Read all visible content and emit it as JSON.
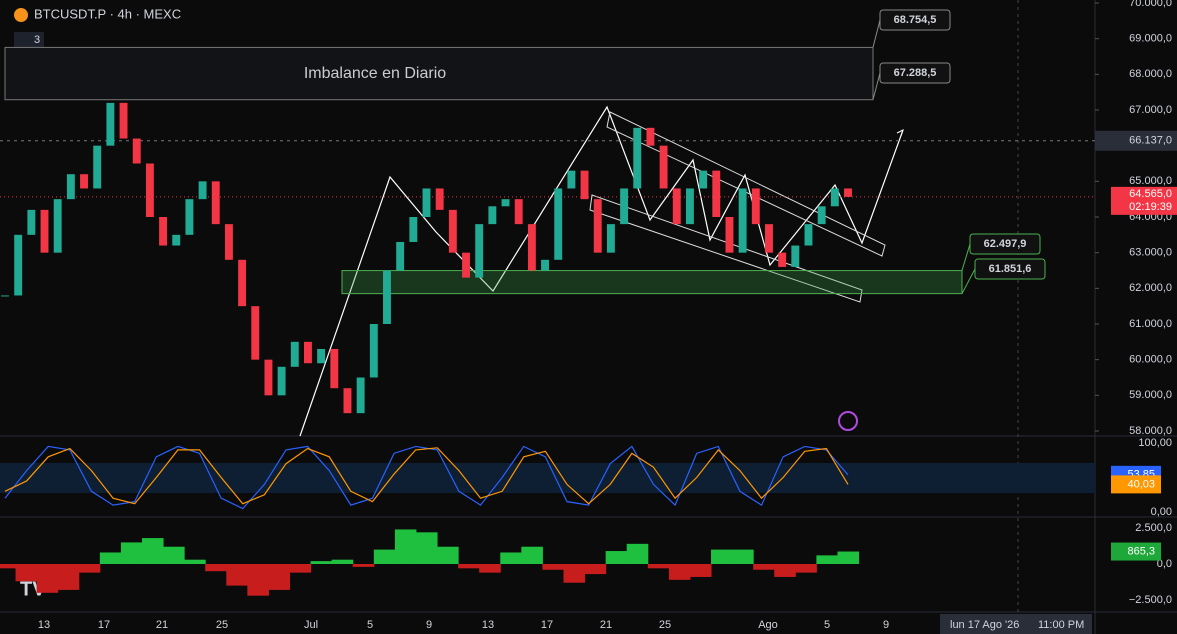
{
  "header": {
    "symbol": "BTCUSDT.P · 4h · MEXC",
    "layers": "3"
  },
  "chart_data": {
    "type": "candlestick",
    "closes": [
      61800,
      63500,
      64200,
      63000,
      64500,
      65200,
      64800,
      66000,
      67200,
      66200,
      65500,
      64000,
      63200,
      63500,
      64500,
      65000,
      63800,
      62800,
      61500,
      60000,
      59000,
      59800,
      60500,
      59900,
      60300,
      59200,
      58500,
      59500,
      61000,
      62500,
      63300,
      64000,
      64800,
      64200,
      63000,
      62300,
      63800,
      64300,
      64500,
      63800,
      62500,
      62800,
      64800,
      65300,
      64500,
      63000,
      63800,
      64800,
      66500,
      66000,
      64800,
      63800,
      64800,
      65300,
      64000,
      63000,
      64800,
      63800,
      63000,
      62600,
      63200,
      63800,
      64300,
      64800,
      64565
    ],
    "ylim": [
      58000,
      70000
    ],
    "yticks": [
      {
        "value": 58000,
        "label": "58.000,0"
      },
      {
        "value": 59000,
        "label": "59.000,0"
      },
      {
        "value": 60000,
        "label": "60.000,0"
      },
      {
        "value": 61000,
        "label": "61.000,0"
      },
      {
        "value": 62000,
        "label": "62.000,0"
      },
      {
        "value": 63000,
        "label": "63.000,0"
      },
      {
        "value": 64000,
        "label": "64.000,0"
      },
      {
        "value": 65000,
        "label": "65.000,0"
      },
      {
        "value": 66000,
        "label": "66.000,0"
      },
      {
        "value": 67000,
        "label": "67.000,0"
      },
      {
        "value": 68000,
        "label": "68.000,0"
      },
      {
        "value": 69000,
        "label": "69.000,0"
      },
      {
        "value": 70000,
        "label": "70.000,0"
      }
    ],
    "x_labels": [
      "13",
      "17",
      "21",
      "25",
      "Jul",
      "5",
      "9",
      "13",
      "17",
      "21",
      "25",
      "Ago",
      "5",
      "9"
    ],
    "imbalance_label": "Imbalance en Diario",
    "levels": [
      {
        "value": 68754.5,
        "label": "68.754,5"
      },
      {
        "value": 67288.5,
        "label": "67.288,5"
      },
      {
        "value": 62497.9,
        "label": "62.497,9"
      },
      {
        "value": 61851.6,
        "label": "61.851,6"
      }
    ],
    "current": {
      "value": 64565,
      "label": "64.565,0",
      "countdown": "02:19:39"
    },
    "crosshair": {
      "value": 66137,
      "label": "66.137,0",
      "time": "lun 17 Ago '26",
      "clock": "11:00 PM"
    }
  },
  "stoch": {
    "ylim": [
      0,
      100
    ],
    "yticks": [
      {
        "value": 100,
        "label": "100,00"
      },
      {
        "value": 0,
        "label": "0,00"
      }
    ],
    "k": [
      20,
      60,
      95,
      90,
      30,
      10,
      15,
      80,
      95,
      85,
      20,
      5,
      40,
      90,
      95,
      60,
      10,
      20,
      85,
      95,
      90,
      30,
      10,
      50,
      95,
      80,
      15,
      10,
      70,
      95,
      40,
      10,
      85,
      95,
      30,
      10,
      80,
      95,
      90,
      53.85
    ],
    "d": [
      30,
      45,
      80,
      92,
      60,
      20,
      12,
      50,
      90,
      90,
      50,
      12,
      25,
      70,
      92,
      80,
      30,
      15,
      55,
      90,
      93,
      60,
      20,
      30,
      80,
      88,
      40,
      12,
      40,
      85,
      65,
      20,
      50,
      90,
      60,
      20,
      50,
      88,
      92,
      40.03
    ],
    "k_label": "53,85",
    "d_label": "40,03"
  },
  "momentum": {
    "ylim": [
      -2500,
      2500
    ],
    "yticks": [
      {
        "value": 2500,
        "label": "2.500,0"
      },
      {
        "value": 0,
        "label": "0,0"
      },
      {
        "value": -2500,
        "label": "−2.500,0"
      }
    ],
    "values": [
      -300,
      -1200,
      -2000,
      -1800,
      -600,
      800,
      1500,
      1800,
      1200,
      300,
      -500,
      -1500,
      -2200,
      -1800,
      -600,
      200,
      300,
      -200,
      1000,
      2400,
      2200,
      1200,
      -300,
      -600,
      800,
      1200,
      -400,
      -1300,
      -700,
      900,
      1400,
      -300,
      -1100,
      -900,
      1000,
      1000,
      -400,
      -900,
      -600,
      600,
      865.3
    ],
    "last_label": "865,3"
  }
}
